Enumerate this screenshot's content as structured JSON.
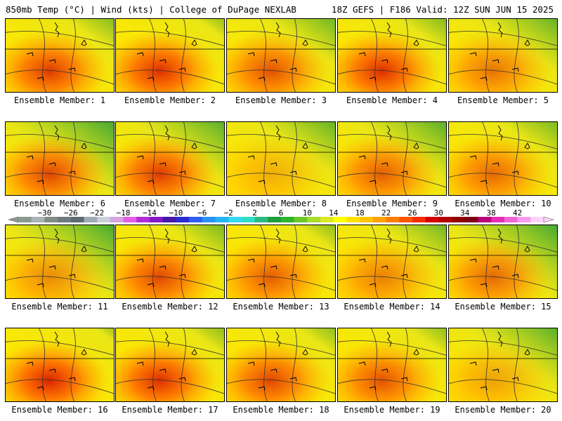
{
  "header": {
    "title_left": "850mb Temp (°C) | Wind (kts) | College of DuPage NEXLAB",
    "title_right": "18Z GEFS | F186 Valid: 12Z SUN JUN 15 2025"
  },
  "members": [
    {
      "label": "Ensemble Member: 1",
      "cool": 0.25,
      "hot": 0.75
    },
    {
      "label": "Ensemble Member: 2",
      "cool": 0.15,
      "hot": 0.8
    },
    {
      "label": "Ensemble Member: 3",
      "cool": 0.35,
      "hot": 0.65
    },
    {
      "label": "Ensemble Member: 4",
      "cool": 0.25,
      "hot": 0.8
    },
    {
      "label": "Ensemble Member: 5",
      "cool": 0.4,
      "hot": 0.5
    },
    {
      "label": "Ensemble Member: 6",
      "cool": 0.55,
      "hot": 0.7
    },
    {
      "label": "Ensemble Member: 7",
      "cool": 0.45,
      "hot": 0.75
    },
    {
      "label": "Ensemble Member: 8",
      "cool": 0.4,
      "hot": 0.25
    },
    {
      "label": "Ensemble Member: 9",
      "cool": 0.45,
      "hot": 0.6
    },
    {
      "label": "Ensemble Member: 10",
      "cool": 0.3,
      "hot": 0.55
    },
    {
      "label": "Ensemble Member: 11",
      "cool": 0.55,
      "hot": 0.4
    },
    {
      "label": "Ensemble Member: 12",
      "cool": 0.3,
      "hot": 0.7
    },
    {
      "label": "Ensemble Member: 13",
      "cool": 0.2,
      "hot": 0.6
    },
    {
      "label": "Ensemble Member: 14",
      "cool": 0.35,
      "hot": 0.45
    },
    {
      "label": "Ensemble Member: 15",
      "cool": 0.55,
      "hot": 0.55
    },
    {
      "label": "Ensemble Member: 16",
      "cool": 0.1,
      "hot": 0.85
    },
    {
      "label": "Ensemble Member: 17",
      "cool": 0.2,
      "hot": 0.8
    },
    {
      "label": "Ensemble Member: 18",
      "cool": 0.2,
      "hot": 0.7
    },
    {
      "label": "Ensemble Member: 19",
      "cool": 0.2,
      "hot": 0.65
    },
    {
      "label": "Ensemble Member: 20",
      "cool": 0.45,
      "hot": 0.3
    }
  ],
  "colorbar": {
    "labels": [
      "−30",
      "−26",
      "−22",
      "−18",
      "−14",
      "−10",
      "−6",
      "−2",
      "2",
      "6",
      "10",
      "14",
      "18",
      "22",
      "26",
      "30",
      "34",
      "38",
      "42"
    ],
    "colors": [
      "#8a9a8f",
      "#a9b2b7",
      "#828b86",
      "#6f7a7f",
      "#5f6b71",
      "#9eaab4",
      "#c8d0db",
      "#d6a5e0",
      "#e35fe6",
      "#b02ed6",
      "#8218c8",
      "#4418a8",
      "#2a2ad2",
      "#2d5ef0",
      "#2891f4",
      "#28b4f0",
      "#34d9f0",
      "#2fdcc7",
      "#29b982",
      "#1e9e3c",
      "#2eb52e",
      "#6cc82b",
      "#a7dc29",
      "#dbe825",
      "#ffff00",
      "#ffe100",
      "#ffc300",
      "#ffa100",
      "#ff7e00",
      "#ff5500",
      "#f02c00",
      "#d40000",
      "#b20000",
      "#8f0000",
      "#7d0010",
      "#b8007a",
      "#e62cb4",
      "#f065d8",
      "#f89aee",
      "#fbd2f8"
    ]
  }
}
